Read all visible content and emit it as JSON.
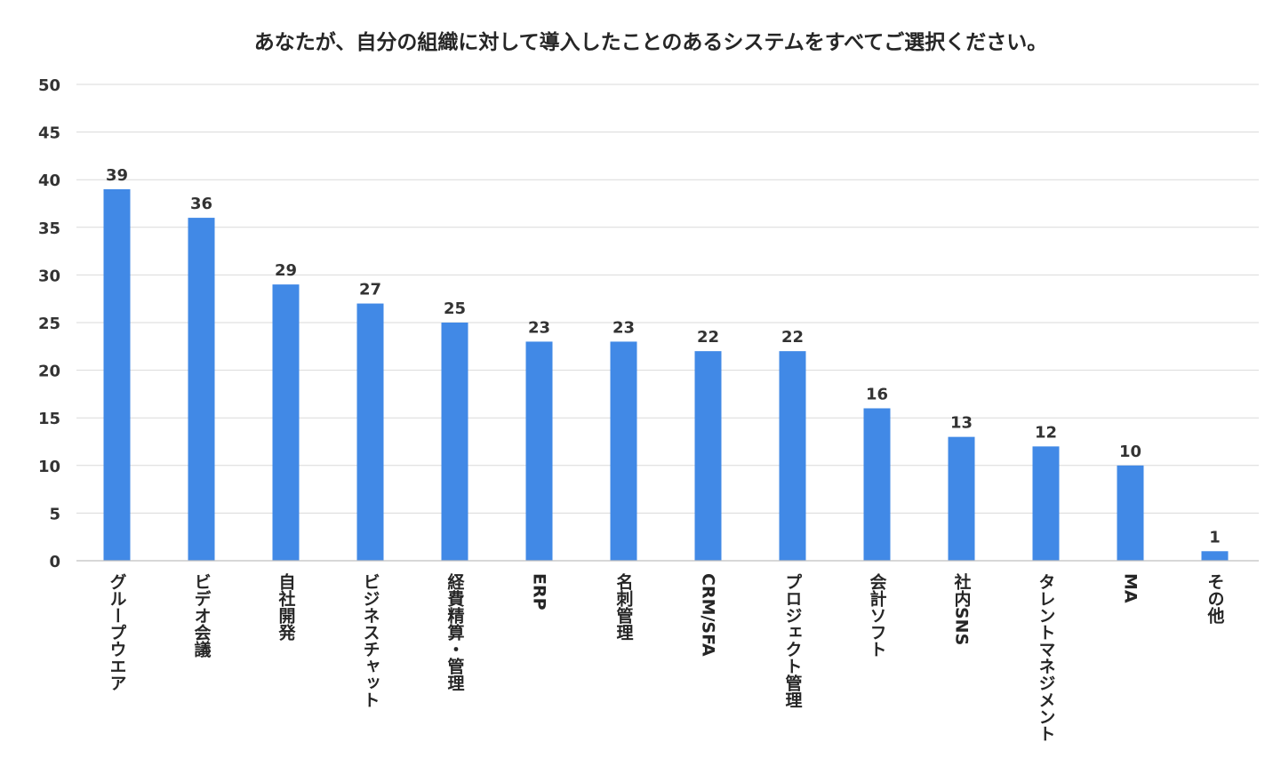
{
  "chart_data": {
    "type": "bar",
    "title": "あなたが、自分の組織に対して導入したことのあるシステムをすべてご選択ください。",
    "xlabel": "",
    "ylabel": "",
    "ylim": [
      0,
      50
    ],
    "yticks": [
      0,
      5,
      10,
      15,
      20,
      25,
      30,
      35,
      40,
      45,
      50
    ],
    "grid": true,
    "bar_color": "#4189e6",
    "categories": [
      "グループウエア",
      "ビデオ会議",
      "自社開発",
      "ビジネスチャット",
      "経費精算・管理",
      "ERP",
      "名刺管理",
      "CRM/SFA",
      "プロジェクト管理",
      "会計ソフト",
      "社内SNS",
      "タレントマネジメント",
      "MA",
      "その他"
    ],
    "values": [
      39,
      36,
      29,
      27,
      25,
      23,
      23,
      22,
      22,
      16,
      13,
      12,
      10,
      1
    ]
  }
}
